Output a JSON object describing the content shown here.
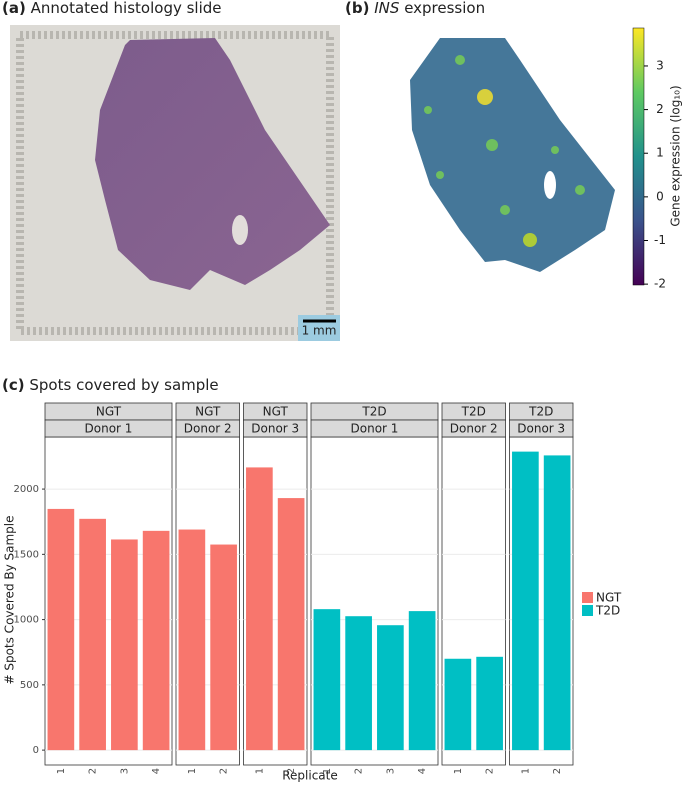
{
  "chart_data": [
    {
      "type": "image",
      "label": "(a)",
      "title": "Annotated histology slide",
      "scale_bar": "1 mm"
    },
    {
      "type": "heatmap",
      "label": "(b)",
      "title_gene": "INS",
      "title": "expression",
      "colorbar_label": "Gene expression (log₁₀)",
      "ylim": [
        -2.02,
        3.87
      ],
      "yticks": [
        -2,
        -1,
        0,
        1,
        2,
        3
      ]
    },
    {
      "type": "bar",
      "label": "(c)",
      "title": "Spots covered by sample",
      "y_label": "# Spots Covered By Sample",
      "x_label": "Replicate",
      "ylim": [
        -114,
        2399
      ],
      "yticks": [
        0,
        500,
        1000,
        1500,
        2000
      ],
      "grid": true,
      "series": [
        {
          "name": "NGT",
          "color": "#F8766D"
        },
        {
          "name": "T2D",
          "color": "#00BFC4"
        }
      ],
      "facets": [
        {
          "group": "NGT",
          "donor": "Donor 1",
          "categories": [
            "1",
            "2",
            "3",
            "4"
          ],
          "values": [
            1848,
            1772,
            1614,
            1680
          ]
        },
        {
          "group": "NGT",
          "donor": "Donor 2",
          "categories": [
            "1",
            "2"
          ],
          "values": [
            1690,
            1575
          ]
        },
        {
          "group": "NGT",
          "donor": "Donor 3",
          "categories": [
            "1",
            "2"
          ],
          "values": [
            2166,
            1931
          ]
        },
        {
          "group": "T2D",
          "donor": "Donor 1",
          "categories": [
            "1",
            "2",
            "3",
            "4"
          ],
          "values": [
            1080,
            1026,
            957,
            1065
          ]
        },
        {
          "group": "T2D",
          "donor": "Donor 2",
          "categories": [
            "1",
            "2"
          ],
          "values": [
            700,
            715
          ]
        },
        {
          "group": "T2D",
          "donor": "Donor 3",
          "categories": [
            "1",
            "2"
          ],
          "values": [
            2287,
            2258
          ]
        }
      ]
    }
  ]
}
